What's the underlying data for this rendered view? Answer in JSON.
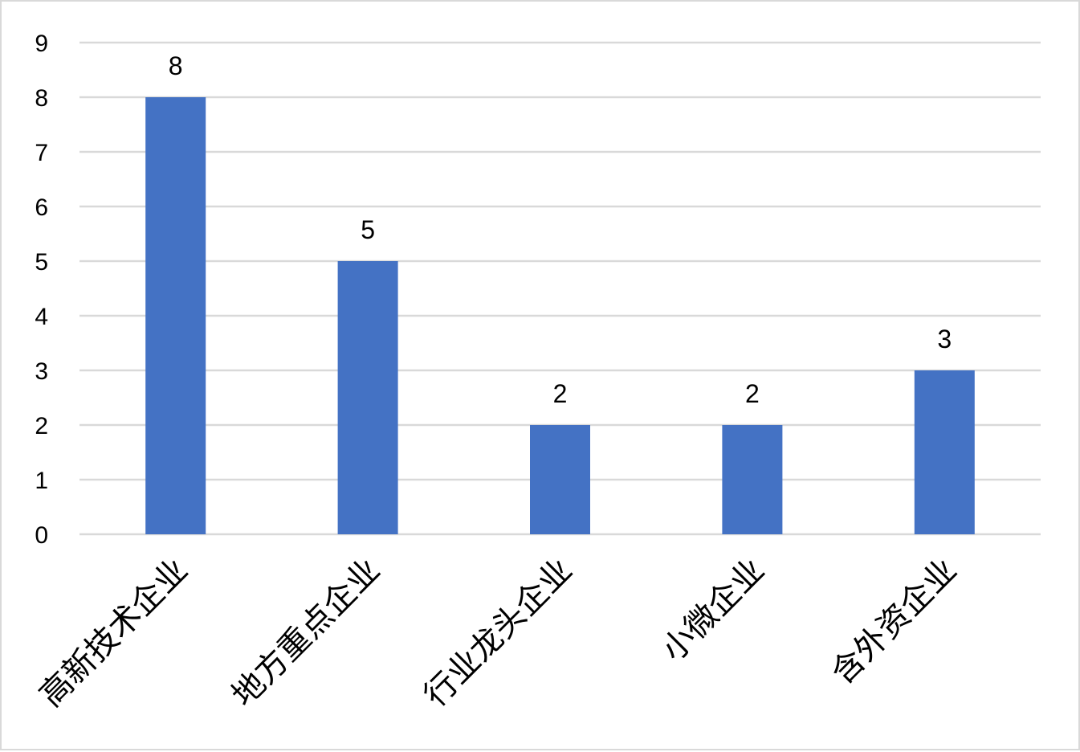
{
  "chart_data": {
    "type": "bar",
    "categories": [
      "高新技术企业",
      "地方重点企业",
      "行业龙头企业",
      "小微企业",
      "含外资企业"
    ],
    "values": [
      8,
      5,
      2,
      2,
      3
    ],
    "title": "",
    "xlabel": "",
    "ylabel": "",
    "ylim": [
      0,
      9
    ],
    "yticks": [
      0,
      1,
      2,
      3,
      4,
      5,
      6,
      7,
      8,
      9
    ],
    "grid": true,
    "legend": "none",
    "data_labels": true,
    "bar_color": "#4472C4",
    "grid_color": "#d9d9d9"
  }
}
